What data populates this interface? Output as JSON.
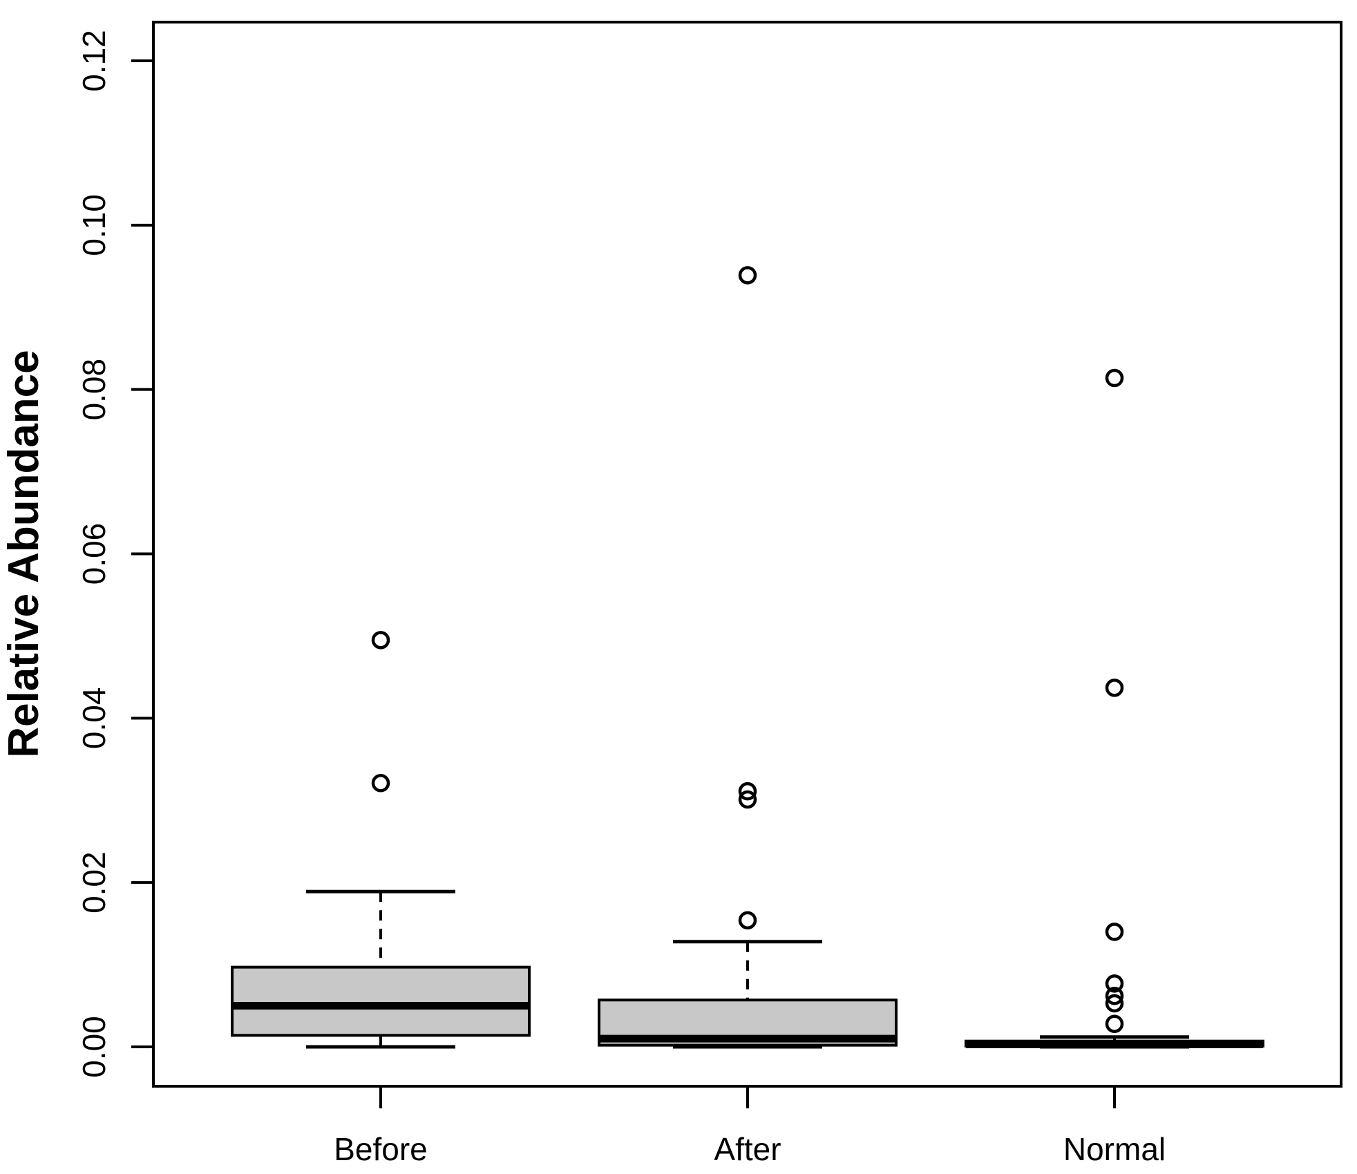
{
  "figure": {
    "title": "",
    "y_axis": {
      "label": "Relative Abundance",
      "tick_labels": [
        "0.00",
        "0.02",
        "0.04",
        "0.06",
        "0.08",
        "0.10",
        "0.12"
      ],
      "tick_values": [
        0.0,
        0.02,
        0.04,
        0.06,
        0.08,
        0.1,
        0.12
      ]
    },
    "x_axis": {
      "category_labels": [
        "Before",
        "After",
        "Normal"
      ]
    }
  },
  "chart_data": {
    "type": "boxplot",
    "title": "",
    "xlabel": "",
    "ylabel": "Relative Abundance",
    "categories": [
      "Before",
      "After",
      "Normal"
    ],
    "ylim": [
      0,
      0.12
    ],
    "yticks": [
      0.0,
      0.02,
      0.04,
      0.06,
      0.08,
      0.1,
      0.12
    ],
    "grid": false,
    "legend": "none",
    "series": [
      {
        "name": "Before",
        "min": 0.0,
        "q1": 0.0014,
        "median": 0.005,
        "q3": 0.0097,
        "max": 0.0189,
        "outliers": [
          0.0321,
          0.0495
        ]
      },
      {
        "name": "After",
        "min": 0.0,
        "q1": 0.0002,
        "median": 0.001,
        "q3": 0.0057,
        "max": 0.0128,
        "outliers": [
          0.0154,
          0.0301,
          0.0311,
          0.0939
        ]
      },
      {
        "name": "Normal",
        "min": 0.0,
        "q1": 0.0001,
        "median": 0.0003,
        "q3": 0.0007,
        "max": 0.0012,
        "outliers": [
          0.0028,
          0.0053,
          0.0062,
          0.0077,
          0.014,
          0.0437,
          0.0814
        ]
      }
    ],
    "colors": {
      "box_fill": "#c8c8c8",
      "stroke": "#000000",
      "background": "#ffffff"
    }
  }
}
